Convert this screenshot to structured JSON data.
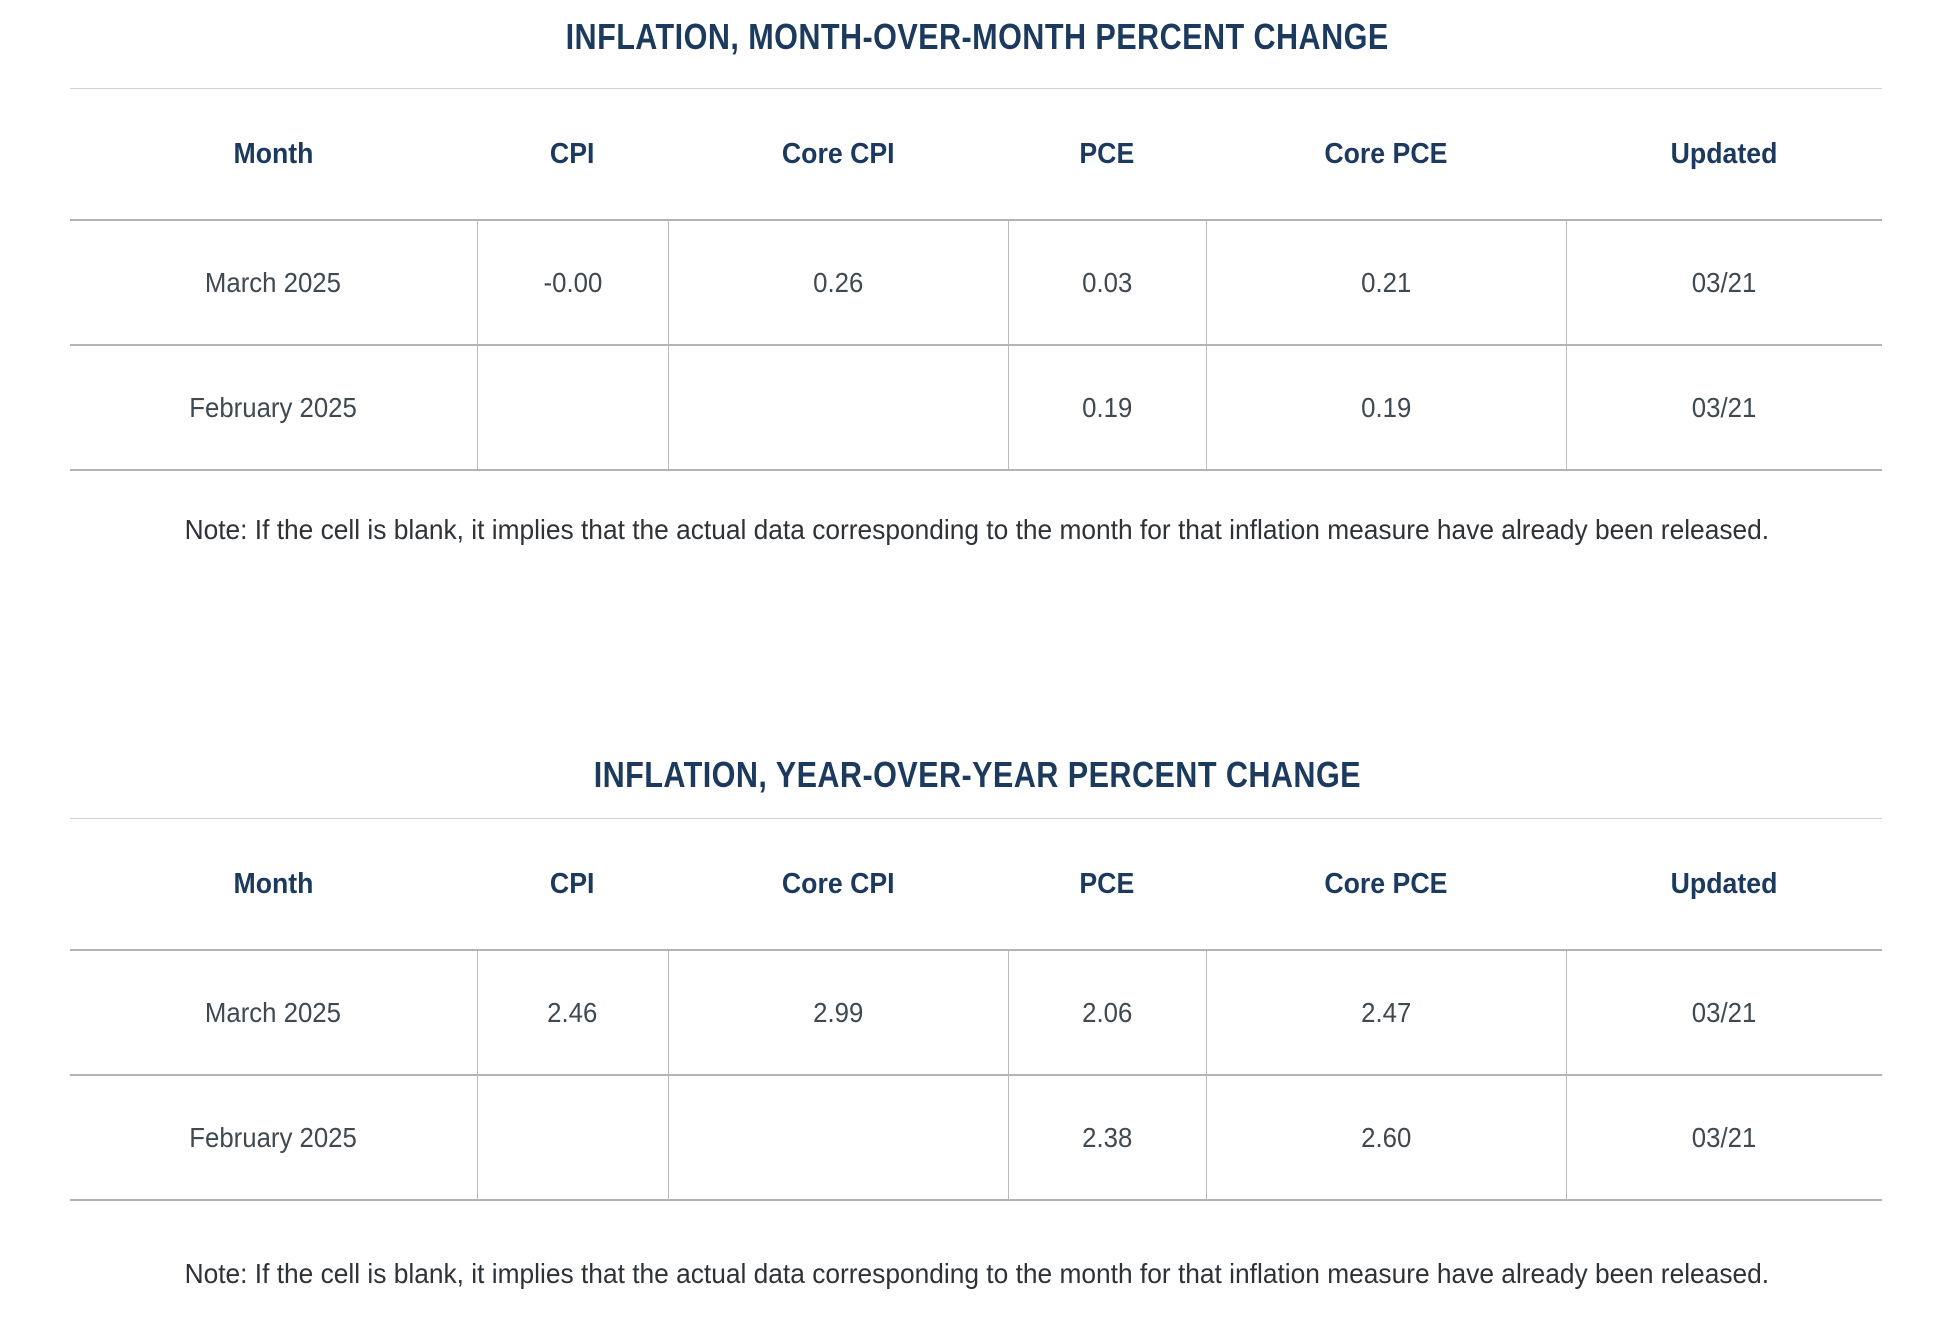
{
  "colors": {
    "accent_navy": "#1b3a5e",
    "cell_text": "#3f4952",
    "note_text": "#2e3338",
    "grid_line": "#b2b5b8",
    "top_line": "#d1d3d4"
  },
  "tables": [
    {
      "title": "INFLATION, MONTH-OVER-MONTH PERCENT CHANGE",
      "columns": [
        "Month",
        "CPI",
        "Core CPI",
        "PCE",
        "Core PCE",
        "Updated"
      ],
      "rows": [
        [
          "March 2025",
          "-0.00",
          "0.26",
          "0.03",
          "0.21",
          "03/21"
        ],
        [
          "February 2025",
          "",
          "",
          "0.19",
          "0.19",
          "03/21"
        ]
      ],
      "note": "Note: If the cell is blank, it implies that the actual data corresponding to the month for that inflation measure have already been released."
    },
    {
      "title": "INFLATION, YEAR-OVER-YEAR PERCENT CHANGE",
      "columns": [
        "Month",
        "CPI",
        "Core CPI",
        "PCE",
        "Core PCE",
        "Updated"
      ],
      "rows": [
        [
          "March 2025",
          "2.46",
          "2.99",
          "2.06",
          "2.47",
          "03/21"
        ],
        [
          "February 2025",
          "",
          "",
          "2.38",
          "2.60",
          "03/21"
        ]
      ],
      "note": "Note: If the cell is blank, it implies that the actual data corresponding to the month for that inflation measure have already been released."
    }
  ]
}
